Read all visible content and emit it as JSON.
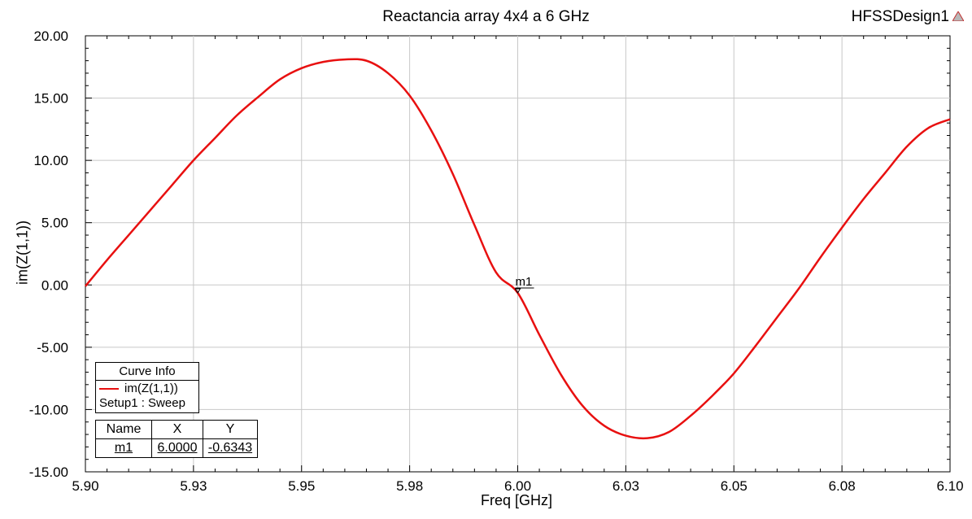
{
  "window": {
    "design_name": "HFSSDesign1"
  },
  "colors": {
    "curve": "#e81010",
    "grid": "#c8c8c8",
    "axis": "#000000"
  },
  "legend": {
    "header": "Curve Info",
    "trace_name": "im(Z(1,1))",
    "setup": "Setup1 : Sweep"
  },
  "marker_table": {
    "headers": [
      "Name",
      "X",
      "Y"
    ],
    "rows": [
      [
        "m1",
        "6.0000",
        "-0.6343"
      ]
    ]
  },
  "chart_data": {
    "type": "line",
    "title": "Reactancia array 4x4 a 6 GHz",
    "xlabel": "Freq [GHz]",
    "ylabel": "im(Z(1,1))",
    "xlim": [
      5.9,
      6.1
    ],
    "ylim": [
      -15,
      20
    ],
    "grid": true,
    "xticks": [
      5.9,
      5.925,
      5.95,
      5.975,
      6.0,
      6.025,
      6.05,
      6.075,
      6.1
    ],
    "xtick_labels": [
      "5.90",
      "5.93",
      "5.95",
      "5.98",
      "6.00",
      "6.03",
      "6.05",
      "6.08",
      "6.10"
    ],
    "yticks": [
      -15,
      -10,
      -5,
      0,
      5,
      10,
      15,
      20
    ],
    "ytick_labels": [
      "-15.00",
      "-10.00",
      "-5.00",
      "0.00",
      "5.00",
      "10.00",
      "15.00",
      "20.00"
    ],
    "series": [
      {
        "name": "im(Z(1,1))",
        "x": [
          5.9,
          5.905,
          5.91,
          5.915,
          5.92,
          5.925,
          5.93,
          5.935,
          5.94,
          5.945,
          5.95,
          5.955,
          5.96,
          5.965,
          5.97,
          5.975,
          5.98,
          5.985,
          5.99,
          5.995,
          6.0,
          6.005,
          6.01,
          6.015,
          6.02,
          6.025,
          6.03,
          6.035,
          6.04,
          6.045,
          6.05,
          6.055,
          6.06,
          6.065,
          6.07,
          6.075,
          6.08,
          6.085,
          6.09,
          6.095,
          6.1
        ],
        "y": [
          -0.1,
          2.0,
          4.0,
          6.0,
          8.0,
          10.0,
          11.8,
          13.6,
          15.1,
          16.5,
          17.4,
          17.9,
          18.1,
          18.0,
          17.0,
          15.2,
          12.4,
          8.9,
          4.8,
          1.0,
          -0.6343,
          -4.0,
          -7.2,
          -9.7,
          -11.3,
          -12.1,
          -12.3,
          -11.8,
          -10.5,
          -8.9,
          -7.1,
          -4.9,
          -2.6,
          -0.3,
          2.2,
          4.6,
          6.9,
          9.0,
          11.1,
          12.6,
          13.3
        ]
      }
    ],
    "markers": [
      {
        "name": "m1",
        "x": 6.0,
        "y": -0.6343
      }
    ]
  }
}
